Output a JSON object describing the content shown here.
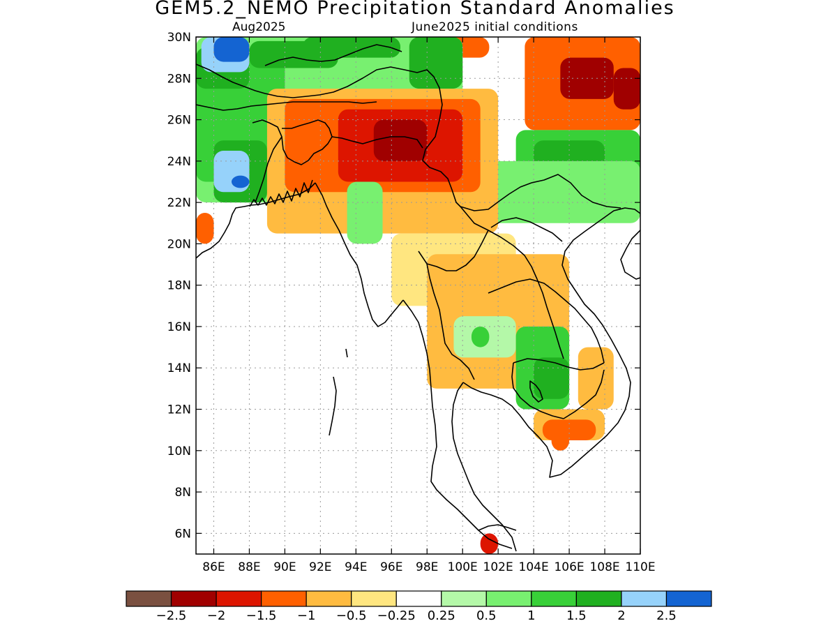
{
  "header": {
    "title": "GEM5.2_NEMO Precipitation Standard Anomalies",
    "valid_month": "Aug2025",
    "initial_conditions": "June2025 initial conditions"
  },
  "map": {
    "lon_range": [
      85,
      110
    ],
    "lat_range": [
      5,
      30
    ],
    "lat_ticks": [
      {
        "value": 30,
        "label": "30N"
      },
      {
        "value": 28,
        "label": "28N"
      },
      {
        "value": 26,
        "label": "26N"
      },
      {
        "value": 24,
        "label": "24N"
      },
      {
        "value": 22,
        "label": "22N"
      },
      {
        "value": 20,
        "label": "20N"
      },
      {
        "value": 18,
        "label": "18N"
      },
      {
        "value": 16,
        "label": "16N"
      },
      {
        "value": 14,
        "label": "14N"
      },
      {
        "value": 12,
        "label": "12N"
      },
      {
        "value": 10,
        "label": "10N"
      },
      {
        "value": 8,
        "label": "8N"
      },
      {
        "value": 6,
        "label": "6N"
      }
    ],
    "lon_ticks": [
      {
        "value": 86,
        "label": "86E"
      },
      {
        "value": 88,
        "label": "88E"
      },
      {
        "value": 90,
        "label": "90E"
      },
      {
        "value": 92,
        "label": "92E"
      },
      {
        "value": 94,
        "label": "94E"
      },
      {
        "value": 96,
        "label": "96E"
      },
      {
        "value": 98,
        "label": "98E"
      },
      {
        "value": 100,
        "label": "100E"
      },
      {
        "value": 102,
        "label": "102E"
      },
      {
        "value": 104,
        "label": "104E"
      },
      {
        "value": 106,
        "label": "106E"
      },
      {
        "value": 108,
        "label": "108E"
      },
      {
        "value": 110,
        "label": "110E"
      }
    ],
    "grid": "dotted",
    "coastline_color": "#000000"
  },
  "colorbar": {
    "colors": [
      "#7a5040",
      "#a00000",
      "#dd1500",
      "#ff6000",
      "#ffbb40",
      "#ffe680",
      "#ffffff",
      "#b4f8a8",
      "#78f070",
      "#38d038",
      "#20b020",
      "#96d2fa",
      "#1464d2"
    ],
    "labels": [
      "−2.5",
      "−2",
      "−1.5",
      "−1",
      "−0.5",
      "−0.25",
      "0.25",
      "0.5",
      "1",
      "1.5",
      "2",
      "2.5"
    ]
  },
  "anomaly_regions": [
    {
      "class": -1,
      "lon": [
        103.5,
        110
      ],
      "lat": [
        25.5,
        30
      ]
    },
    {
      "class": -2,
      "lon": [
        105.5,
        108.5
      ],
      "lat": [
        27,
        29
      ]
    },
    {
      "class": -2,
      "lon": [
        108.5,
        110
      ],
      "lat": [
        26.5,
        28.5
      ]
    },
    {
      "class": -1,
      "lon": [
        99,
        101.5
      ],
      "lat": [
        29,
        30
      ]
    },
    {
      "class": 0.5,
      "lon": [
        85,
        100
      ],
      "lat": [
        22,
        30
      ]
    },
    {
      "class": 1,
      "lon": [
        85,
        90
      ],
      "lat": [
        23,
        29
      ]
    },
    {
      "class": 1.5,
      "lon": [
        86,
        89
      ],
      "lat": [
        22,
        25
      ]
    },
    {
      "class": 1.5,
      "lon": [
        85,
        88
      ],
      "lat": [
        27.5,
        29.5
      ]
    },
    {
      "class": 2,
      "lon": [
        86,
        88
      ],
      "lat": [
        22.5,
        24.5
      ]
    },
    {
      "class": 2.5,
      "lon": [
        87,
        88
      ],
      "lat": [
        22.7,
        23.3
      ]
    },
    {
      "class": 1.5,
      "lon": [
        88,
        93
      ],
      "lat": [
        28.5,
        29.8
      ]
    },
    {
      "class": 1.5,
      "lon": [
        91,
        96.5
      ],
      "lat": [
        29,
        30
      ]
    },
    {
      "class": 2,
      "lon": [
        85.3,
        88
      ],
      "lat": [
        28.3,
        30
      ]
    },
    {
      "class": 2.5,
      "lon": [
        86,
        88
      ],
      "lat": [
        28.8,
        30
      ]
    },
    {
      "class": 1.5,
      "lon": [
        97,
        100
      ],
      "lat": [
        27.5,
        30
      ]
    },
    {
      "class": 1,
      "lon": [
        103,
        110
      ],
      "lat": [
        22,
        25.5
      ]
    },
    {
      "class": 1.5,
      "lon": [
        104,
        108
      ],
      "lat": [
        23,
        25
      ]
    },
    {
      "class": 0.5,
      "lon": [
        101,
        110
      ],
      "lat": [
        21,
        24
      ]
    },
    {
      "class": -0.5,
      "lon": [
        89,
        102
      ],
      "lat": [
        20.5,
        27.5
      ]
    },
    {
      "class": -1,
      "lon": [
        90,
        101
      ],
      "lat": [
        22.5,
        27
      ]
    },
    {
      "class": -1.5,
      "lon": [
        93,
        100
      ],
      "lat": [
        23,
        26.5
      ]
    },
    {
      "class": -2,
      "lon": [
        95,
        98
      ],
      "lat": [
        24,
        26
      ]
    },
    {
      "class": -1,
      "lon": [
        85,
        86
      ],
      "lat": [
        20,
        21.5
      ]
    },
    {
      "class": 0.5,
      "lon": [
        93.5,
        95.5
      ],
      "lat": [
        20,
        23
      ]
    },
    {
      "class": -0.25,
      "lon": [
        96,
        103
      ],
      "lat": [
        17,
        20.5
      ]
    },
    {
      "class": -0.5,
      "lon": [
        98,
        106
      ],
      "lat": [
        13,
        19.5
      ]
    },
    {
      "class": 0.25,
      "lon": [
        99.5,
        103
      ],
      "lat": [
        14.5,
        16.5
      ]
    },
    {
      "class": 1,
      "lon": [
        100.5,
        101.5
      ],
      "lat": [
        15,
        16
      ]
    },
    {
      "class": 1,
      "lon": [
        103,
        106
      ],
      "lat": [
        12,
        16
      ]
    },
    {
      "class": 1.5,
      "lon": [
        104,
        106
      ],
      "lat": [
        12.5,
        14.5
      ]
    },
    {
      "class": -0.5,
      "lon": [
        104,
        108
      ],
      "lat": [
        10.5,
        12
      ]
    },
    {
      "class": -1,
      "lon": [
        104.5,
        107.5
      ],
      "lat": [
        10.5,
        11.5
      ]
    },
    {
      "class": -1,
      "lon": [
        105,
        106
      ],
      "lat": [
        10,
        11
      ]
    },
    {
      "class": -0.5,
      "lon": [
        106.5,
        108.5
      ],
      "lat": [
        12,
        15
      ]
    },
    {
      "class": -1.5,
      "lon": [
        101,
        102
      ],
      "lat": [
        5,
        6
      ]
    }
  ]
}
